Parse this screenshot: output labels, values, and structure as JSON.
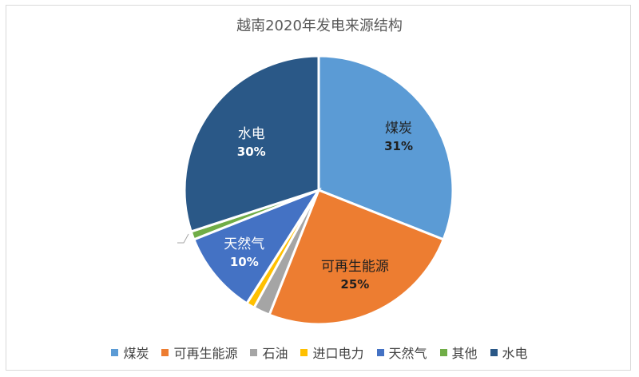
{
  "chart_data": {
    "type": "pie",
    "title": "越南2020年发电来源结构",
    "series": [
      {
        "name": "煤炭",
        "value": 31,
        "label": "31%",
        "color": "#5b9bd5"
      },
      {
        "name": "可再生能源",
        "value": 25,
        "label": "25%",
        "color": "#ed7d31"
      },
      {
        "name": "石油",
        "value": 2,
        "label": "",
        "color": "#a5a5a5"
      },
      {
        "name": "进口电力",
        "value": 1,
        "label": "",
        "color": "#ffc000"
      },
      {
        "name": "天然气",
        "value": 10,
        "label": "10%",
        "color": "#4472c4"
      },
      {
        "name": "其他",
        "value": 1,
        "label": "",
        "color": "#70ad47"
      },
      {
        "name": "水电",
        "value": 30,
        "label": "30%",
        "color": "#2a5887"
      }
    ],
    "legend_position": "bottom"
  }
}
